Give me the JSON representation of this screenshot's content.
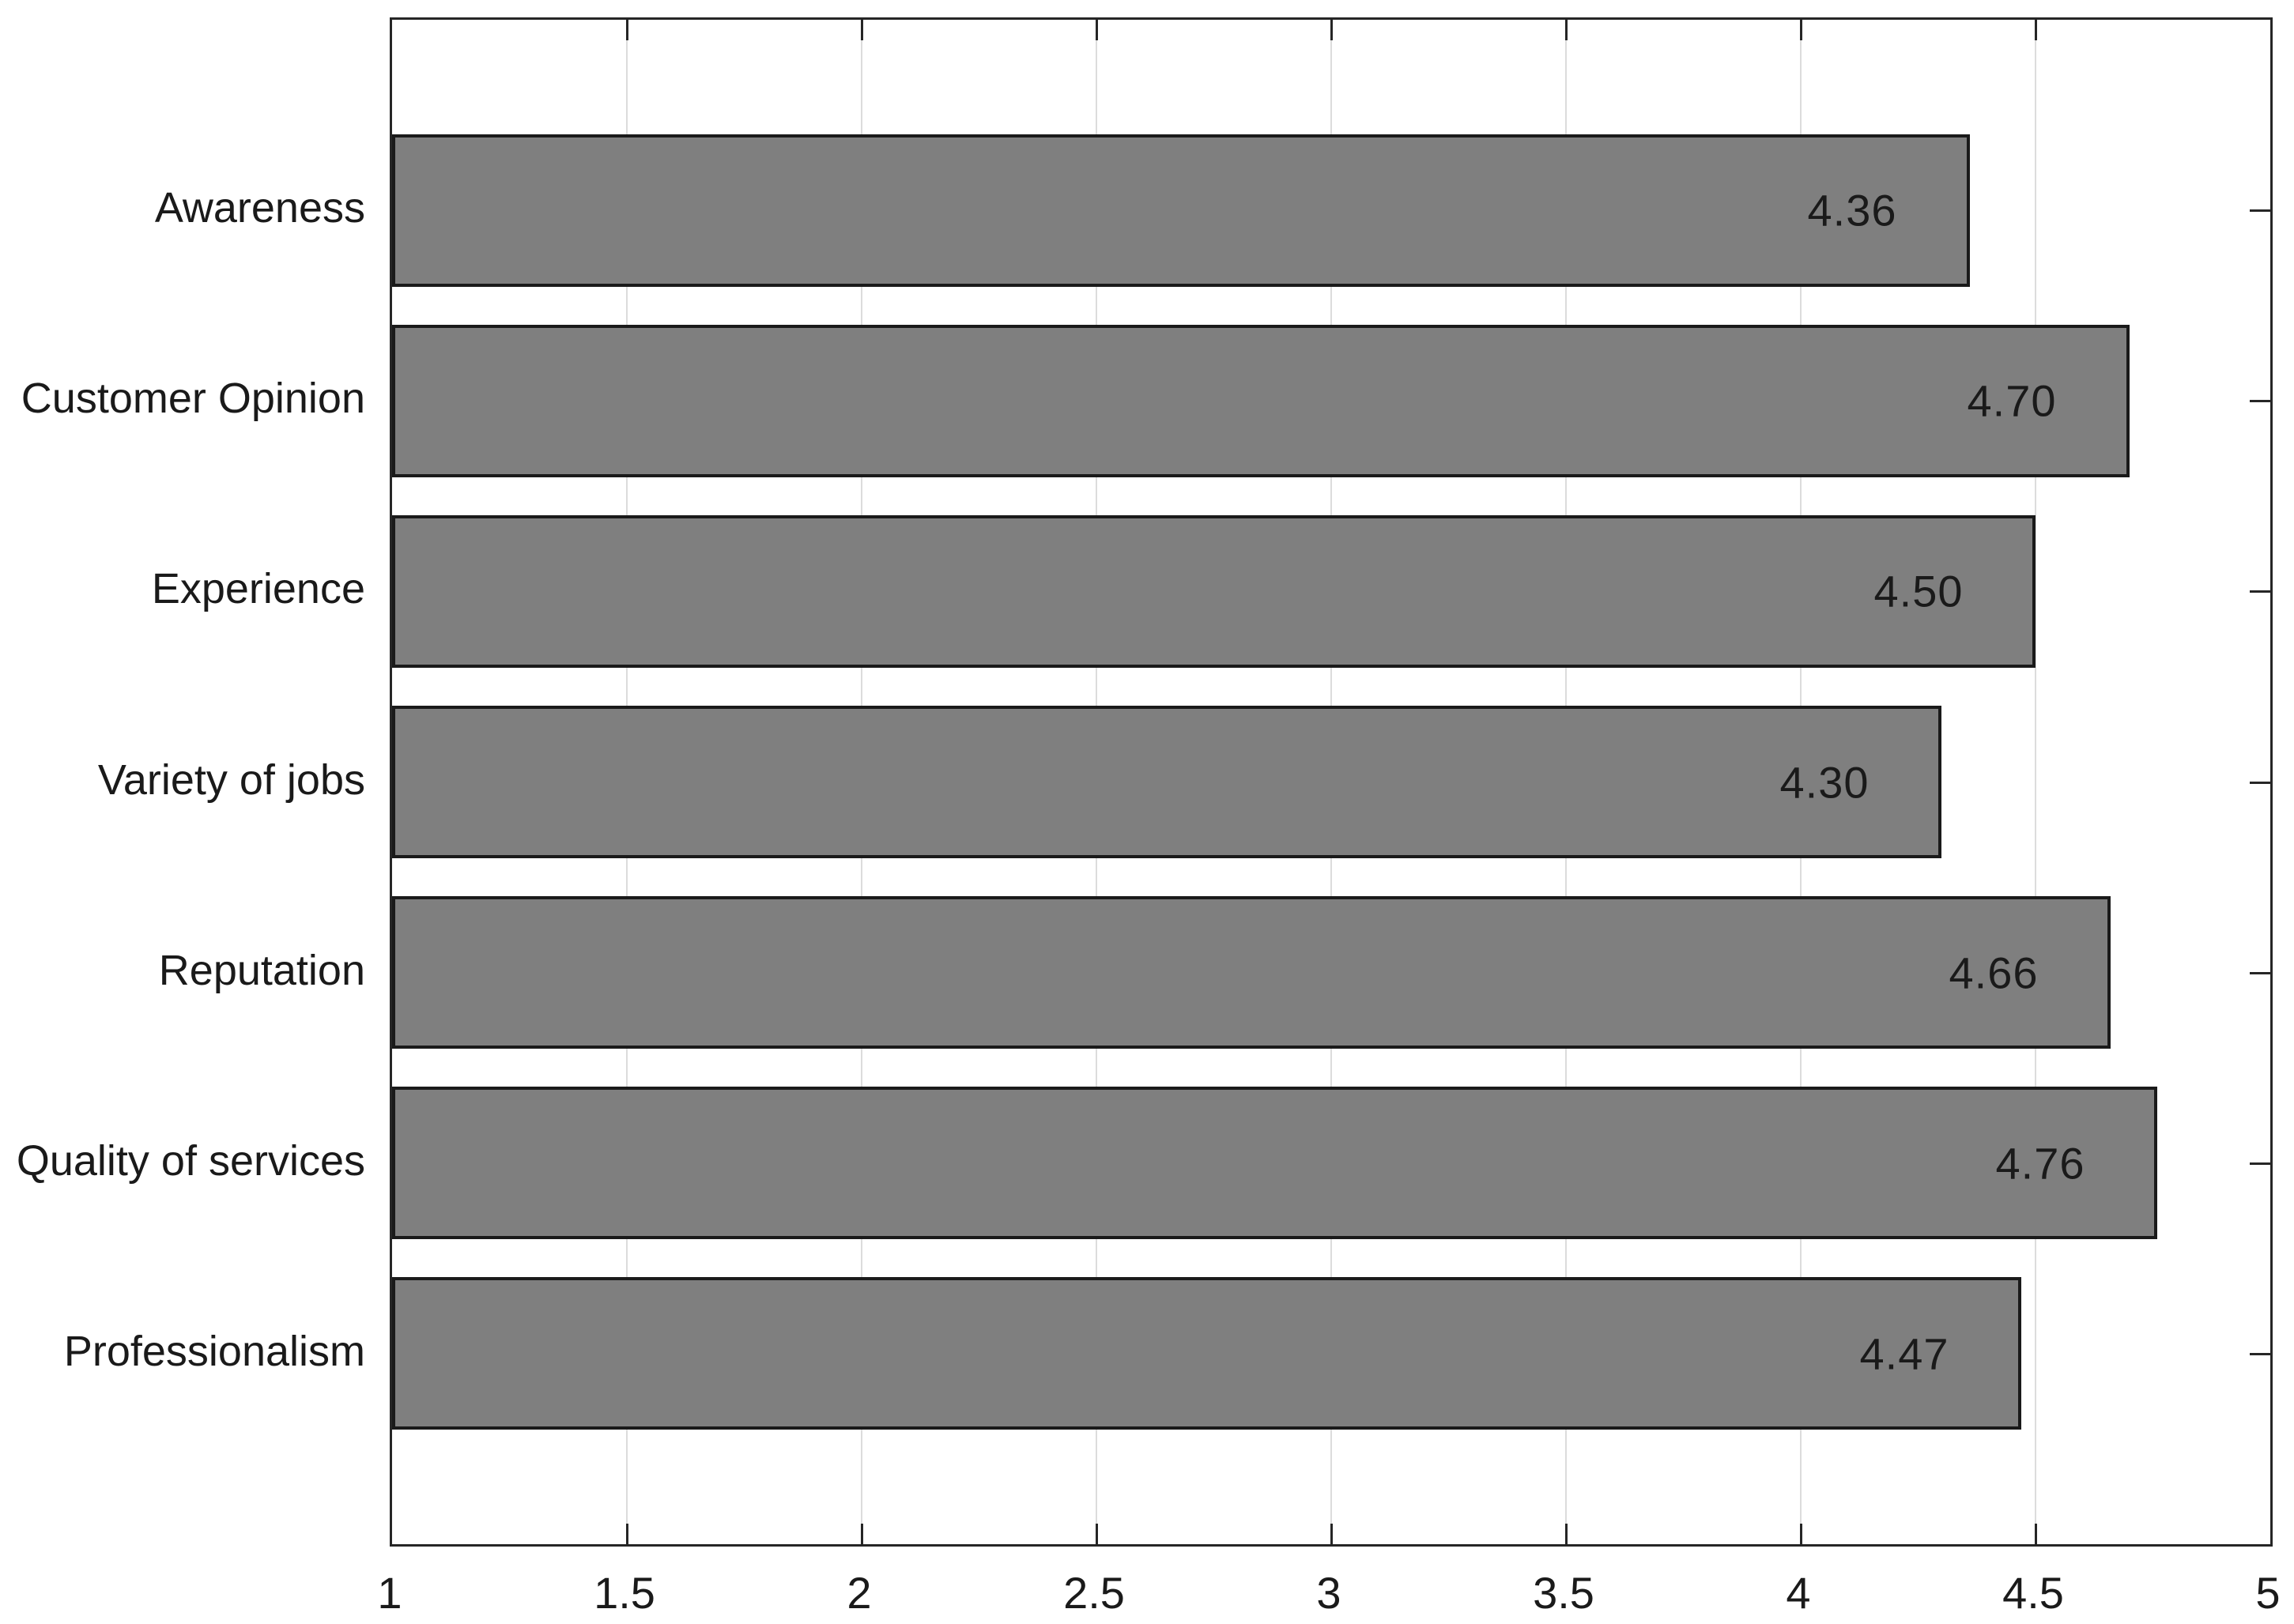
{
  "chart_data": {
    "type": "bar",
    "orientation": "horizontal",
    "title": "",
    "xlabel": "",
    "ylabel": "",
    "categories": [
      "Awareness",
      "Customer Opinion",
      "Experience",
      "Variety of jobs",
      "Reputation",
      "Quality of services",
      "Professionalism"
    ],
    "values": [
      4.36,
      4.7,
      4.5,
      4.3,
      4.66,
      4.76,
      4.47
    ],
    "value_labels": [
      "4.36",
      "4.70",
      "4.50",
      "4.30",
      "4.66",
      "4.76",
      "4.47"
    ],
    "xlim": [
      1,
      5
    ],
    "x_ticks": [
      1,
      1.5,
      2,
      2.5,
      3,
      3.5,
      4,
      4.5,
      5
    ],
    "x_tick_labels": [
      "1",
      "1.5",
      "2",
      "2.5",
      "3",
      "3.5",
      "4",
      "4.5",
      "5"
    ],
    "grid": "vertical-only",
    "legend": null,
    "bar_width_fraction": 0.8,
    "colors": {
      "bar_fill": "#7f7f7f",
      "bar_edge": "#1a1a1a",
      "axis_box": "#262626",
      "gridline": "#dcdcdc",
      "text": "#1a1a1a",
      "background": "#ffffff"
    }
  }
}
